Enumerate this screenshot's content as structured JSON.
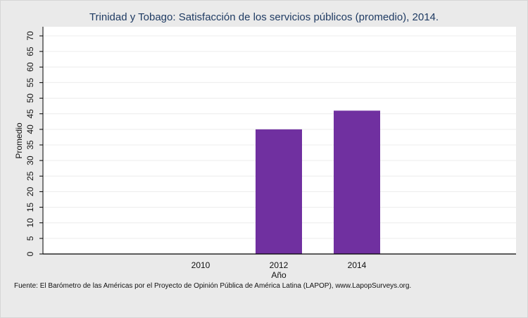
{
  "chart_data": {
    "type": "bar",
    "title": "Trinidad y Tobago: Satisfacción de los servicios públicos (promedio), 2014.",
    "xlabel": "Año",
    "ylabel": "Promedio",
    "categories": [
      "2010",
      "2012",
      "2014"
    ],
    "values": [
      null,
      40,
      46
    ],
    "ylim": [
      0,
      70
    ],
    "yticks": [
      0,
      5,
      10,
      15,
      20,
      25,
      30,
      35,
      40,
      45,
      50,
      55,
      60,
      65,
      70
    ],
    "grid": true,
    "bar_color": "#7030a0"
  },
  "source_note": "Fuente: El Barómetro de las Américas por el Proyecto de Opinión Pública de América Latina (LAPOP), www.LapopSurveys.org."
}
